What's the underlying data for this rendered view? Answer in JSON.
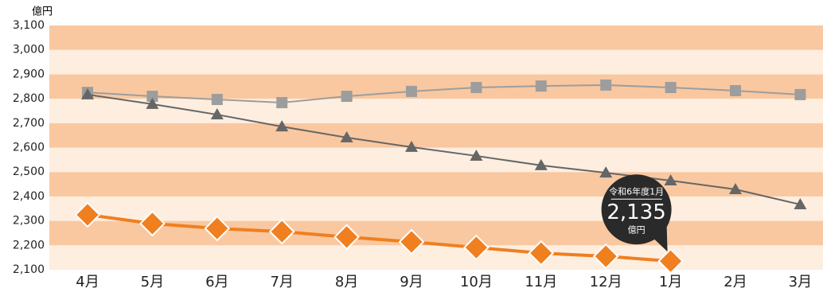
{
  "chart_data": {
    "type": "line",
    "y_unit": "億円",
    "categories": [
      "4月",
      "5月",
      "6月",
      "7月",
      "8月",
      "9月",
      "10月",
      "11月",
      "12月",
      "1月",
      "2月",
      "3月"
    ],
    "series": [
      {
        "color": "#f07f1f",
        "marker": "diamond",
        "values": [
          2325,
          2289,
          2269,
          2256,
          2234,
          2214,
          2191,
          2168,
          2155,
          2135,
          null,
          null
        ],
        "value_labels": [
          null,
          null,
          null,
          null,
          null,
          null,
          null,
          null,
          null,
          "2,135",
          null,
          null
        ]
      },
      {
        "color": "#9d9d9d",
        "marker": "square",
        "values": [
          2826,
          2810,
          2797,
          2784,
          2810,
          2830,
          2846,
          2852,
          2856,
          2846,
          2833,
          2817
        ]
      },
      {
        "color": "#666666",
        "marker": "triangle",
        "values": [
          2817,
          2778,
          2735,
          2686,
          2641,
          2602,
          2566,
          2527,
          2497,
          2465,
          2429,
          2367
        ]
      }
    ],
    "annotation": {
      "title": "令和6年度1月",
      "unit": "億円"
    },
    "ylim": [
      2100,
      3100
    ],
    "yticks": [
      {
        "value": 2100,
        "label": "2,100"
      },
      {
        "value": 2200,
        "label": "2,200"
      },
      {
        "value": 2300,
        "label": "2,300"
      },
      {
        "value": 2400,
        "label": "2,400"
      },
      {
        "value": 2500,
        "label": "2,500"
      },
      {
        "value": 2600,
        "label": "2,600"
      },
      {
        "value": 2700,
        "label": "2,700"
      },
      {
        "value": 2800,
        "label": "2,800"
      },
      {
        "value": 2900,
        "label": "2,900"
      },
      {
        "value": 3000,
        "label": "3,000"
      },
      {
        "value": 3100,
        "label": "3,100"
      }
    ],
    "grid": true,
    "band_colors": [
      "#fdeee0",
      "#f9c8a0"
    ]
  }
}
